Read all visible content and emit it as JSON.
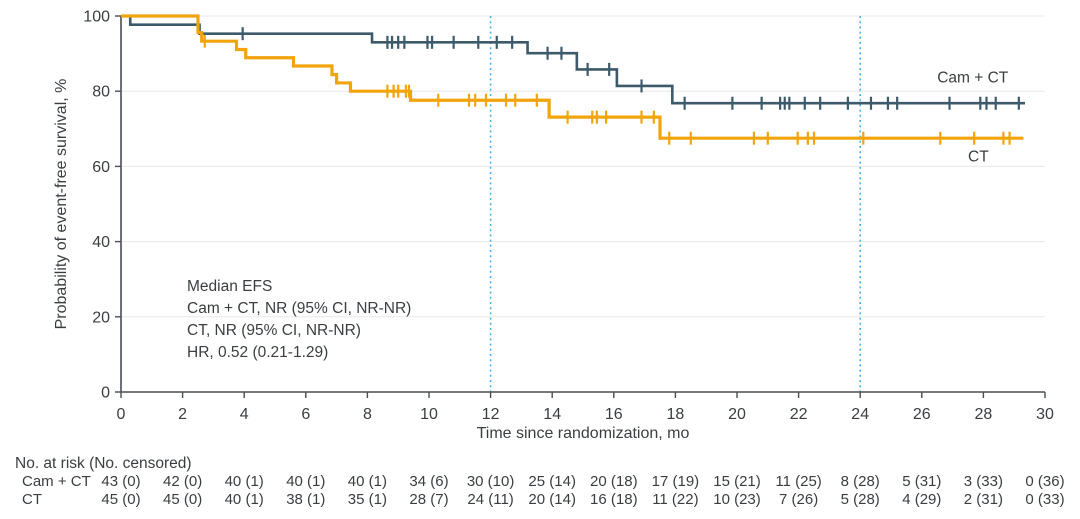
{
  "figure": {
    "annotation": {
      "lines": [
        "Median EFS",
        "Cam + CT, NR (95% CI, NR-NR)",
        "CT, NR (95% CI, NR-NR)",
        "HR, 0.52 (0.21-1.29)"
      ]
    },
    "colors": {
      "cam_ct": "#3d5a6b",
      "ct": "#f2a40d",
      "reference_line": "#41b6e6",
      "grid": "#e8e8e8",
      "axis": "#4a4e52",
      "text": "#3a3e41"
    }
  },
  "chart_data": {
    "type": "line",
    "subtype": "kaplan-meier-step",
    "title": "",
    "xlabel": "Time since randomization, mo",
    "ylabel": "Probability of event-free survival, %",
    "xlim": [
      0,
      30
    ],
    "ylim": [
      0,
      100
    ],
    "x_ticks": [
      0,
      2,
      4,
      6,
      8,
      10,
      12,
      14,
      16,
      18,
      20,
      22,
      24,
      26,
      28,
      30
    ],
    "y_ticks": [
      0,
      20,
      40,
      60,
      80,
      100
    ],
    "grid": "horizontal-light",
    "reference_lines_x": [
      12,
      24
    ],
    "legend_position": "curve-end-labels",
    "series": [
      {
        "name": "Cam + CT",
        "color": "#3d5a6b",
        "steps": [
          [
            0,
            100
          ],
          [
            0.3,
            97.7
          ],
          [
            2.55,
            95.3
          ],
          [
            8.15,
            93.0
          ],
          [
            13.2,
            90.1
          ],
          [
            14.8,
            85.8
          ],
          [
            16.1,
            81.4
          ],
          [
            17.9,
            76.8
          ]
        ],
        "end_time": 29.35,
        "censors": [
          3.95,
          8.65,
          8.8,
          9.0,
          9.2,
          9.95,
          10.1,
          10.8,
          11.6,
          12.2,
          12.7,
          13.85,
          14.3,
          15.15,
          15.85,
          16.9,
          18.3,
          19.85,
          20.8,
          21.4,
          21.55,
          21.7,
          22.2,
          22.7,
          23.6,
          24.35,
          24.9,
          25.2,
          26.9,
          27.9,
          28.1,
          28.4,
          29.15
        ],
        "label_x": 26.5,
        "label_y": 82.3
      },
      {
        "name": "CT",
        "color": "#f2a40d",
        "steps": [
          [
            0,
            100
          ],
          [
            2.5,
            95.6
          ],
          [
            2.62,
            93.3
          ],
          [
            3.75,
            91.1
          ],
          [
            4.05,
            88.9
          ],
          [
            5.6,
            86.7
          ],
          [
            6.85,
            84.4
          ],
          [
            7.0,
            82.2
          ],
          [
            7.45,
            80.0
          ],
          [
            9.4,
            77.6
          ],
          [
            13.9,
            73.1
          ],
          [
            17.5,
            67.5
          ]
        ],
        "end_time": 29.3,
        "censors": [
          2.72,
          8.65,
          8.85,
          9.0,
          9.25,
          9.35,
          10.3,
          11.3,
          11.5,
          11.85,
          12.5,
          12.8,
          13.5,
          14.5,
          15.3,
          15.45,
          15.75,
          16.9,
          17.3,
          17.8,
          18.5,
          20.55,
          21.0,
          21.97,
          22.3,
          22.5,
          24.1,
          26.6,
          27.7,
          28.65,
          28.85
        ],
        "label_x": 27.5,
        "label_y": 61.3
      }
    ]
  },
  "risk_table": {
    "header": "No. at risk (No. censored)",
    "times": [
      0,
      2,
      4,
      6,
      8,
      10,
      12,
      14,
      16,
      18,
      20,
      22,
      24,
      26,
      28,
      30
    ],
    "rows": [
      {
        "name": "Cam + CT",
        "values": [
          "43 (0)",
          "42 (0)",
          "40 (1)",
          "40 (1)",
          "40 (1)",
          "34 (6)",
          "30 (10)",
          "25 (14)",
          "20 (18)",
          "17 (19)",
          "15 (21)",
          "11 (25)",
          "8 (28)",
          "5 (31)",
          "3 (33)",
          "0 (36)"
        ]
      },
      {
        "name": "CT",
        "values": [
          "45 (0)",
          "45 (0)",
          "40 (1)",
          "38 (1)",
          "35 (1)",
          "28 (7)",
          "24 (11)",
          "20 (14)",
          "16 (18)",
          "11 (22)",
          "10 (23)",
          "7 (26)",
          "5 (28)",
          "4 (29)",
          "2 (31)",
          "0 (33)"
        ]
      }
    ]
  }
}
